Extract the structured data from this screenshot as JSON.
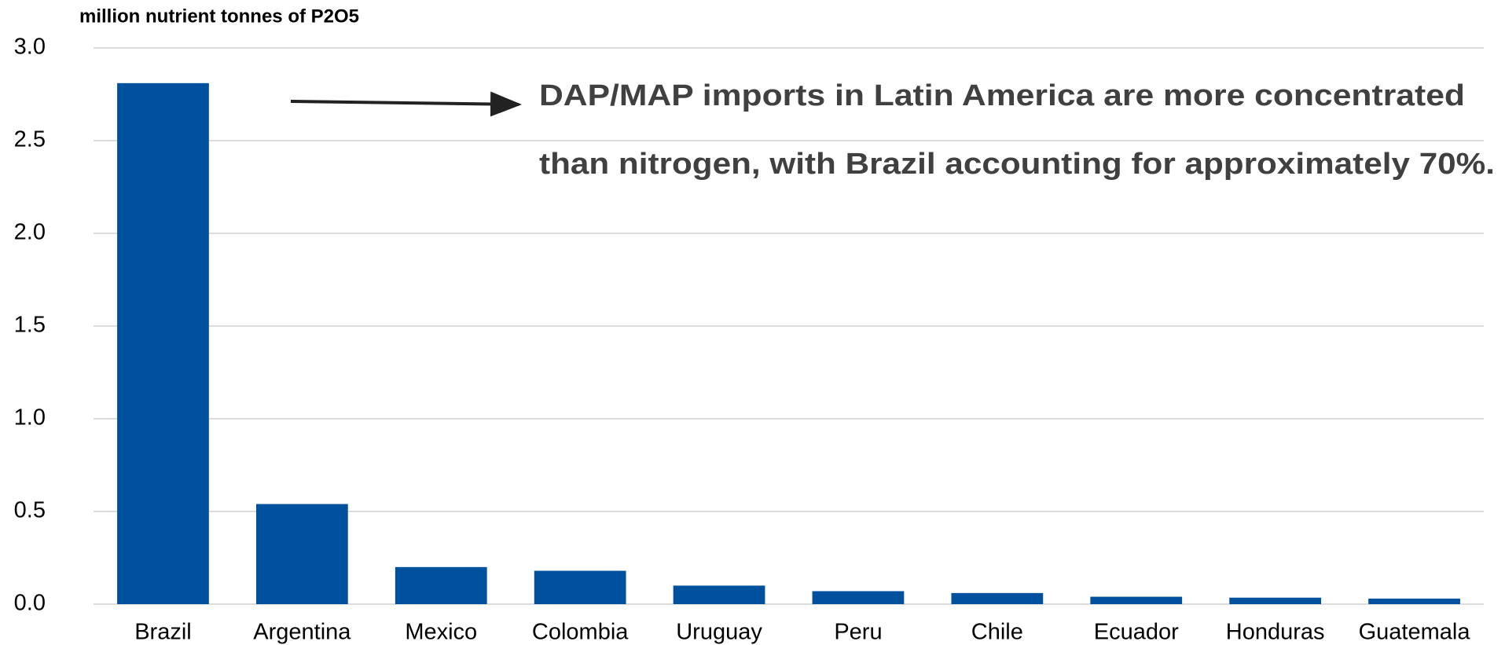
{
  "chart_data": {
    "type": "bar",
    "y_axis_label": "million nutrient tonnes of P2O5",
    "annotation": [
      "DAP/MAP imports in Latin America are more concentrated",
      "than nitrogen, with Brazil accounting for approximately 70%."
    ],
    "categories": [
      "Brazil",
      "Argentina",
      "Mexico",
      "Colombia",
      "Uruguay",
      "Peru",
      "Chile",
      "Ecuador",
      "Honduras",
      "Guatemala"
    ],
    "values": [
      2.81,
      0.54,
      0.2,
      0.18,
      0.1,
      0.07,
      0.06,
      0.04,
      0.035,
      0.03
    ],
    "color": "#00519d",
    "ylim": [
      0,
      3
    ],
    "yticks": [
      {
        "value": 0,
        "label": "0.0"
      },
      0.5,
      {
        "value": 1,
        "label": "1.0"
      },
      1.5,
      {
        "value": 2,
        "label": "2.0"
      },
      2.5,
      {
        "value": 3,
        "label": "3.0"
      }
    ],
    "grid": true
  }
}
